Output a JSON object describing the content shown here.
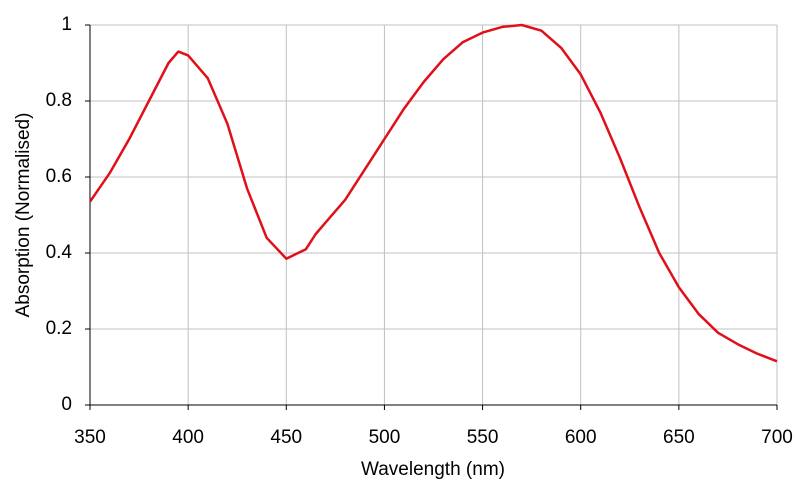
{
  "chart_data": {
    "type": "line",
    "x_label": "Wavelength (nm)",
    "y_label": "Absorption (Normalised)",
    "x": [
      350,
      360,
      370,
      380,
      390,
      395,
      400,
      410,
      420,
      430,
      440,
      450,
      460,
      465,
      470,
      480,
      490,
      500,
      510,
      520,
      530,
      540,
      550,
      560,
      570,
      580,
      590,
      600,
      610,
      620,
      630,
      640,
      650,
      660,
      670,
      680,
      690,
      700
    ],
    "series": [
      {
        "color": "#e0101a",
        "values": [
          0.535,
          0.61,
          0.7,
          0.8,
          0.9,
          0.93,
          0.92,
          0.86,
          0.74,
          0.57,
          0.44,
          0.385,
          0.41,
          0.45,
          0.48,
          0.54,
          0.62,
          0.7,
          0.78,
          0.85,
          0.91,
          0.955,
          0.98,
          0.995,
          1.0,
          0.985,
          0.94,
          0.87,
          0.77,
          0.65,
          0.52,
          0.4,
          0.31,
          0.24,
          0.19,
          0.16,
          0.135,
          0.115
        ]
      }
    ],
    "xlim": [
      350,
      700
    ],
    "xticks": [
      350,
      400,
      450,
      500,
      550,
      600,
      650,
      700
    ],
    "ylim": [
      0,
      1
    ],
    "yticks": [
      0,
      0.2,
      0.4,
      0.6,
      0.8,
      1
    ],
    "grid": true
  }
}
